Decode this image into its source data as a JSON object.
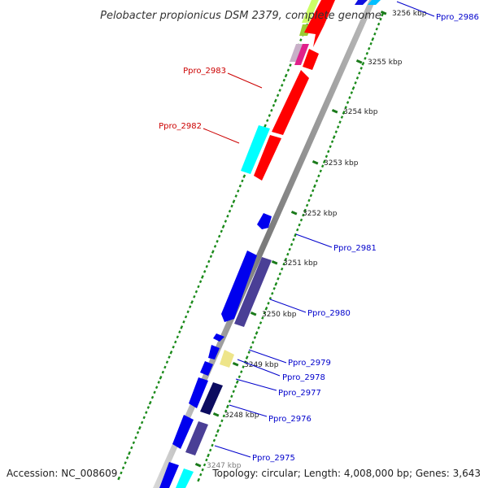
{
  "title": "Pelobacter propionicus DSM 2379, complete genome",
  "accession": "Accession: NC_008609",
  "topology": "Topology: circular; Length: 4,008,000 bp; Genes: 3,643",
  "colors": {
    "backbone": "#8c8c8c",
    "dotted_track": "#1a8a1a",
    "label_red": "#cc0000",
    "label_blue": "#0000cc",
    "tick": "#1a7a1a"
  },
  "ticks": [
    {
      "label": "3256 kbp"
    },
    {
      "label": "3255 kbp"
    },
    {
      "label": "3254 kbp"
    },
    {
      "label": "3253 kbp"
    },
    {
      "label": "3252 kbp"
    },
    {
      "label": "3251 kbp"
    },
    {
      "label": "3250 kbp"
    },
    {
      "label": "3249 kbp"
    },
    {
      "label": "3248 kbp"
    },
    {
      "label": "3247 kbp"
    }
  ],
  "gene_labels": [
    {
      "name": "Ppro_2986",
      "color": "#0000cc"
    },
    {
      "name": "Ppro_2983",
      "color": "#cc0000"
    },
    {
      "name": "Ppro_2982",
      "color": "#cc0000"
    },
    {
      "name": "Ppro_2981",
      "color": "#0000cc"
    },
    {
      "name": "Ppro_2980",
      "color": "#0000cc"
    },
    {
      "name": "Ppro_2979",
      "color": "#0000cc"
    },
    {
      "name": "Ppro_2978",
      "color": "#0000cc"
    },
    {
      "name": "Ppro_2977",
      "color": "#0000cc"
    },
    {
      "name": "Ppro_2976",
      "color": "#0000cc"
    },
    {
      "name": "Ppro_2975",
      "color": "#0000cc"
    }
  ]
}
